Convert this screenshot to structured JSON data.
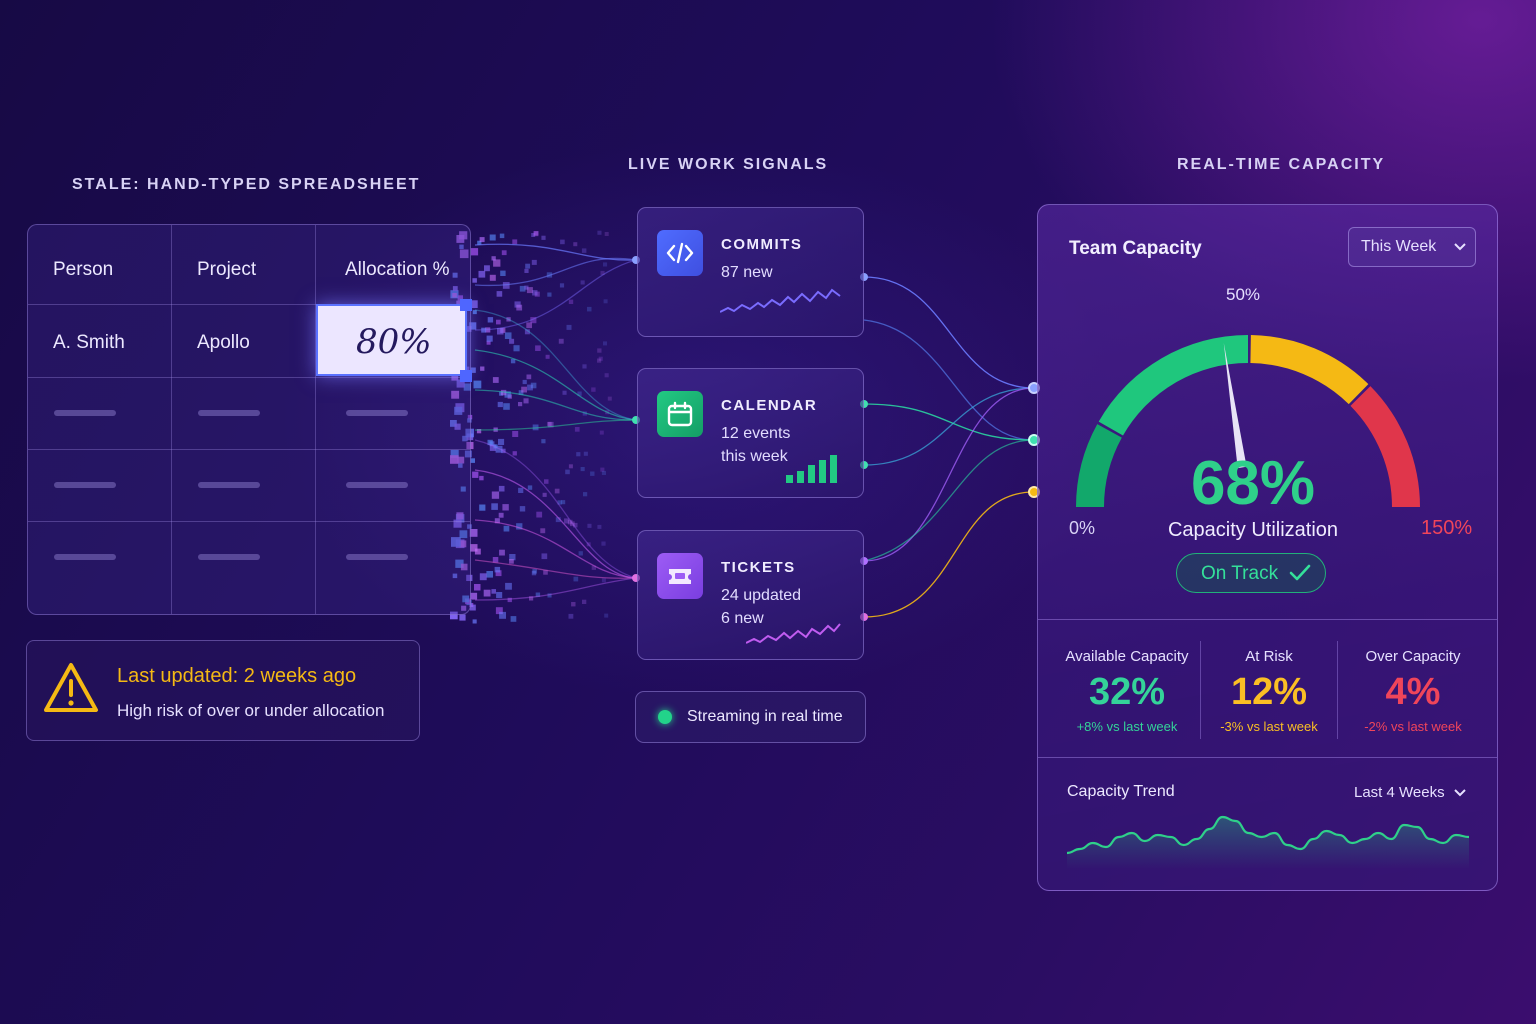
{
  "sections": {
    "spreadsheet_title": "STALE: HAND-TYPED SPREADSHEET",
    "signals_title": "LIVE WORK SIGNALS",
    "capacity_title": "REAL-TIME CAPACITY"
  },
  "spreadsheet": {
    "headers": [
      "Person",
      "Project",
      "Allocation %"
    ],
    "rows": [
      {
        "person": "A. Smith",
        "project": "Apollo",
        "allocation": "80%"
      }
    ]
  },
  "warning": {
    "title": "Last updated: 2 weeks ago",
    "detail": "High risk of over or under allocation"
  },
  "signals": [
    {
      "name": "COMMITS",
      "line1": "87 new",
      "line2": "",
      "icon": "code-icon"
    },
    {
      "name": "CALENDAR",
      "line1": "12 events",
      "line2": "this week",
      "icon": "calendar-icon"
    },
    {
      "name": "TICKETS",
      "line1": "24 updated",
      "line2": "6 new",
      "icon": "ticket-icon"
    }
  ],
  "stream": {
    "label": "Streaming in real time"
  },
  "capacity": {
    "title": "Team Capacity",
    "period": "This Week",
    "gauge": {
      "min_label": "0%",
      "mid_label": "50%",
      "max_label": "150%",
      "min": 0,
      "max": 150,
      "value": 68,
      "value_label": "68%",
      "caption": "Capacity Utilization",
      "status": "On Track"
    },
    "metrics": [
      {
        "label": "Available Capacity",
        "value": "32%",
        "delta": "+8% vs last week",
        "color": "#34d399"
      },
      {
        "label": "At Risk",
        "value": "12%",
        "delta": "-3% vs last week",
        "color": "#fbbf24"
      },
      {
        "label": "Over Capacity",
        "value": "4%",
        "delta": "-2% vs last week",
        "color": "#f0455a"
      }
    ],
    "trend": {
      "title": "Capacity Trend",
      "range": "Last 4 Weeks",
      "values": [
        48,
        50,
        53,
        51,
        56,
        58,
        54,
        57,
        56,
        52,
        55,
        60,
        66,
        64,
        58,
        56,
        58,
        52,
        50,
        55,
        59,
        57,
        53,
        55,
        58,
        55,
        62,
        61,
        55,
        53,
        57,
        56
      ]
    }
  },
  "colors": {
    "accent_green": "#2fd08a",
    "accent_yellow": "#f5b914",
    "accent_red": "#e63a4e",
    "accent_blue": "#4f6cff",
    "accent_purple": "#a855f7"
  }
}
